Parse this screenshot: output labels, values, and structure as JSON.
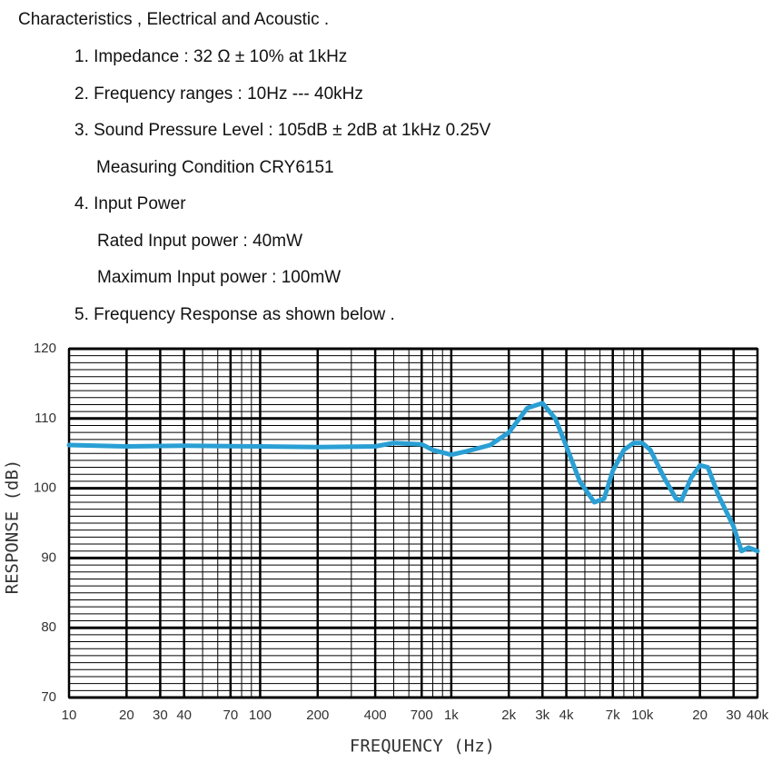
{
  "document": {
    "heading": "Characteristics , Electrical and Acoustic .",
    "items": [
      "1. Impedance : 32 Ω ± 10% at 1kHz",
      "2. Frequency ranges : 10Hz --- 40kHz",
      "3. Sound Pressure Level : 105dB ± 2dB at 1kHz 0.25V",
      "Measuring Condition CRY6151",
      "4. Input Power",
      "Rated Input power : 40mW",
      "Maximum Input power : 100mW",
      "5. Frequency Response as shown below ."
    ]
  },
  "chart_data": {
    "type": "line",
    "xlabel": "FREQUENCY (Hz)",
    "ylabel": "RESPONSE (dB)",
    "x_scale": "log",
    "grid": true,
    "color": "#2a9fd4",
    "x": [
      10,
      20,
      40,
      100,
      200,
      400,
      500,
      700,
      800,
      1000,
      1200,
      1600,
      2000,
      2500,
      3000,
      3500,
      4000,
      4700,
      5600,
      6300,
      7000,
      8000,
      9000,
      10000,
      11000,
      13000,
      15000,
      16000,
      18000,
      20000,
      22000,
      25000,
      30000,
      33000,
      36000,
      40000
    ],
    "values": [
      106.2,
      106.0,
      106.1,
      106.0,
      105.9,
      106.0,
      106.5,
      106.3,
      105.5,
      104.8,
      105.3,
      106.2,
      108,
      111.5,
      112.2,
      110,
      106,
      101,
      98,
      98.5,
      102.5,
      105.5,
      106.5,
      106.5,
      105.5,
      101.5,
      98.5,
      98.3,
      101.5,
      103.3,
      103,
      99,
      94.5,
      91,
      91.5,
      91
    ],
    "xlim": [
      10,
      40000
    ],
    "xticks": [
      10,
      20,
      30,
      40,
      70,
      100,
      200,
      400,
      700,
      {
        "value": 1000,
        "label": "1k"
      },
      {
        "value": 2000,
        "label": "2k"
      },
      {
        "value": 3000,
        "label": "3k"
      },
      {
        "value": 4000,
        "label": "4k"
      },
      {
        "value": 7000,
        "label": "7k"
      },
      {
        "value": 10000,
        "label": "10k"
      },
      {
        "value": 20000,
        "label": "20"
      },
      {
        "value": 30000,
        "label": "30"
      },
      {
        "value": 40000,
        "label": "40k"
      }
    ],
    "ylim": [
      70,
      120
    ],
    "yticks": [
      70,
      80,
      90,
      100,
      110,
      120
    ]
  }
}
